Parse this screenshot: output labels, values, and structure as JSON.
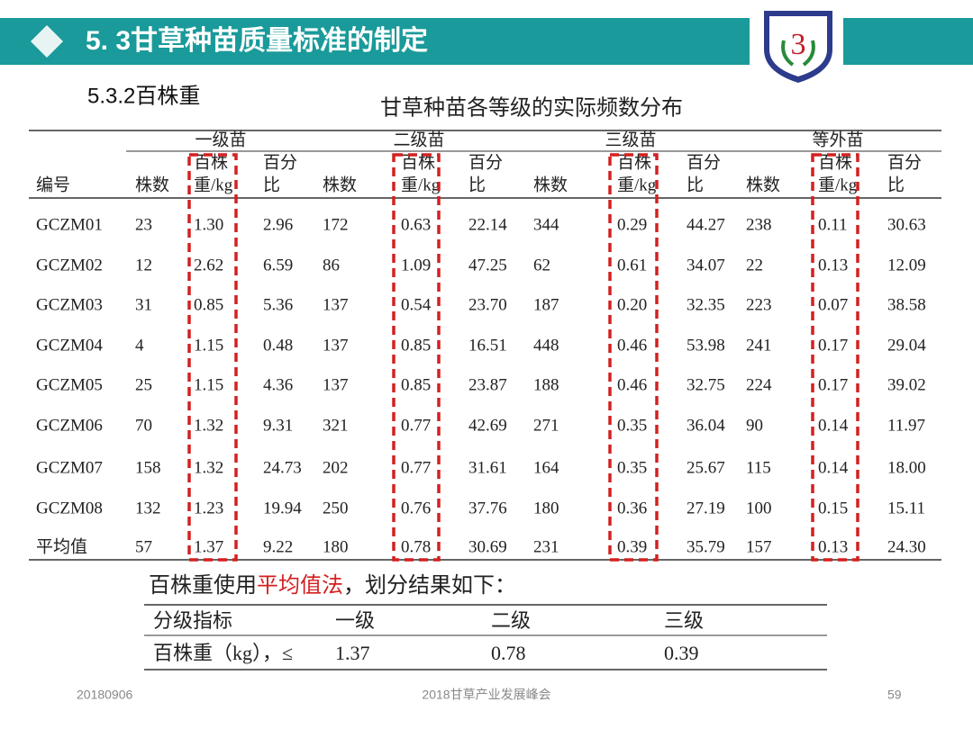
{
  "header": {
    "title": "5. 3甘草种苗质量标准的制定"
  },
  "subtitle": "5.3.2百株重",
  "table": {
    "title": "甘草种苗各等级的实际频数分布",
    "groups": [
      "一级苗",
      "二级苗",
      "三级苗",
      "等外苗"
    ],
    "columns": [
      "编号",
      "株数",
      [
        "百株",
        "重/kg"
      ],
      [
        "百分",
        "比"
      ],
      "株数",
      [
        "百株",
        "重/kg"
      ],
      [
        "百分",
        "比"
      ],
      "株数",
      [
        "百株",
        "重/kg"
      ],
      [
        "百分",
        "比"
      ],
      "株数",
      [
        "百株",
        "重/kg"
      ],
      [
        "百分",
        "比"
      ]
    ],
    "rows": [
      [
        "GCZM01",
        "23",
        "1.30",
        "2.96",
        "172",
        "0.63",
        "22.14",
        "344",
        "0.29",
        "44.27",
        "238",
        "0.11",
        "30.63"
      ],
      [
        "GCZM02",
        "12",
        "2.62",
        "6.59",
        "86",
        "1.09",
        "47.25",
        "62",
        "0.61",
        "34.07",
        "22",
        "0.13",
        "12.09"
      ],
      [
        "GCZM03",
        "31",
        "0.85",
        "5.36",
        "137",
        "0.54",
        "23.70",
        "187",
        "0.20",
        "32.35",
        "223",
        "0.07",
        "38.58"
      ],
      [
        "GCZM04",
        "4",
        "1.15",
        "0.48",
        "137",
        "0.85",
        "16.51",
        "448",
        "0.46",
        "53.98",
        "241",
        "0.17",
        "29.04"
      ],
      [
        "GCZM05",
        "25",
        "1.15",
        "4.36",
        "137",
        "0.85",
        "23.87",
        "188",
        "0.46",
        "32.75",
        "224",
        "0.17",
        "39.02"
      ],
      [
        "GCZM06",
        "70",
        "1.32",
        "9.31",
        "321",
        "0.77",
        "42.69",
        "271",
        "0.35",
        "36.04",
        "90",
        "0.14",
        "11.97"
      ],
      [
        "GCZM07",
        "158",
        "1.32",
        "24.73",
        "202",
        "0.77",
        "31.61",
        "164",
        "0.35",
        "25.67",
        "115",
        "0.14",
        "18.00"
      ],
      [
        "GCZM08",
        "132",
        "1.23",
        "19.94",
        "250",
        "0.76",
        "37.76",
        "180",
        "0.36",
        "27.19",
        "100",
        "0.15",
        "15.11"
      ],
      [
        "平均值",
        "57",
        "1.37",
        "9.22",
        "180",
        "0.78",
        "30.69",
        "231",
        "0.39",
        "35.79",
        "157",
        "0.13",
        "24.30"
      ]
    ]
  },
  "summary": {
    "note": [
      "百株重使用",
      "平均值法",
      "，划分结果如下："
    ],
    "header": [
      "分级指标",
      "一级",
      "二级",
      "三级"
    ],
    "rows": [
      [
        "百株重（kg），≤",
        "1.37",
        "0.78",
        "0.39"
      ]
    ]
  },
  "footer": {
    "date": "20180906",
    "event": "2018甘草产业发展峰会",
    "page": "59"
  }
}
